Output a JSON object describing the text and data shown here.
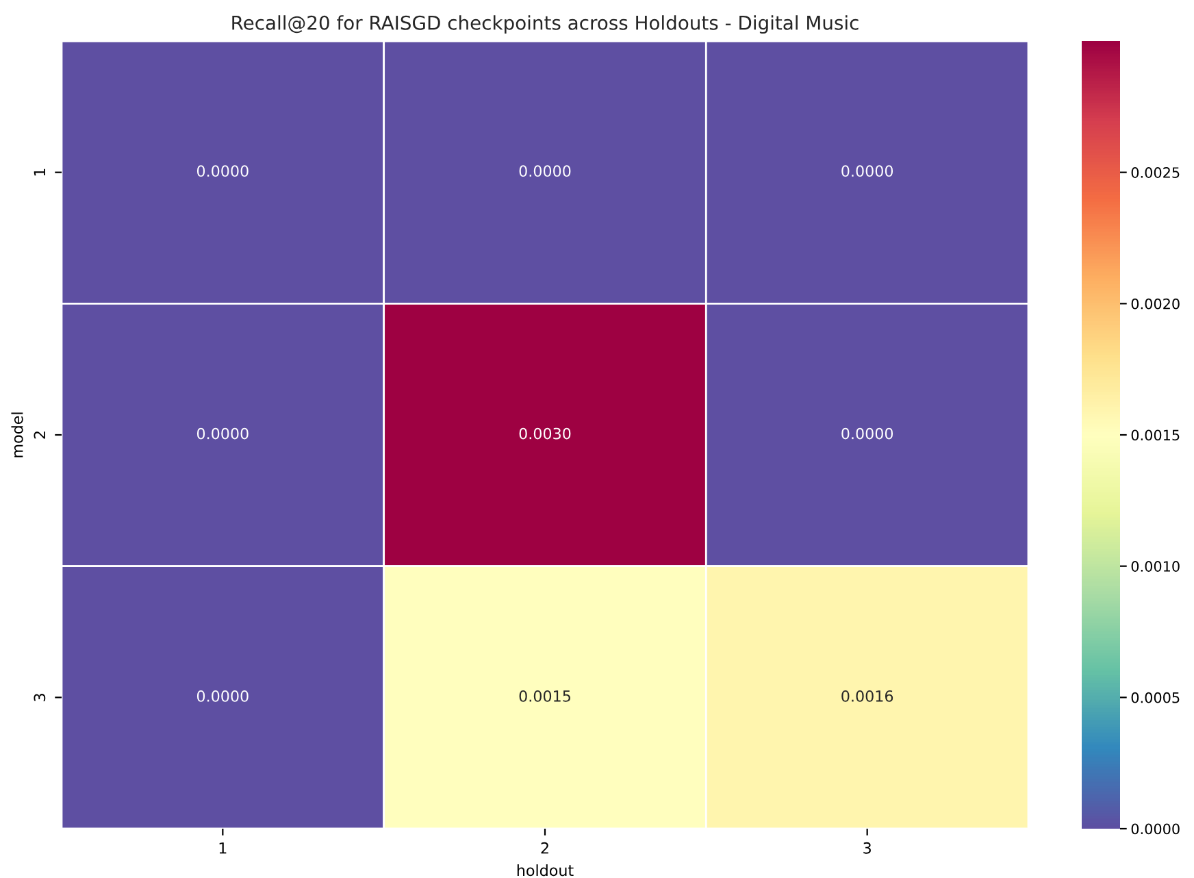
{
  "chart_data": {
    "type": "heatmap",
    "title": "Recall@20 for RAISGD checkpoints across Holdouts - Digital Music",
    "xlabel": "holdout",
    "ylabel": "model",
    "categories": [
      "1",
      "2",
      "3"
    ],
    "y_categories": [
      "1",
      "2",
      "3"
    ],
    "cells": [
      [
        0.0,
        0.0,
        0.0
      ],
      [
        0.0,
        0.003,
        0.0
      ],
      [
        0.0,
        0.0015,
        0.0016
      ]
    ],
    "cell_labels": [
      [
        "0.0000",
        "0.0000",
        "0.0000"
      ],
      [
        "0.0000",
        "0.0030",
        "0.0000"
      ],
      [
        "0.0000",
        "0.0015",
        "0.0016"
      ]
    ],
    "cticks": [
      "0.0000",
      "0.0005",
      "0.0010",
      "0.0015",
      "0.0020",
      "0.0025"
    ]
  }
}
